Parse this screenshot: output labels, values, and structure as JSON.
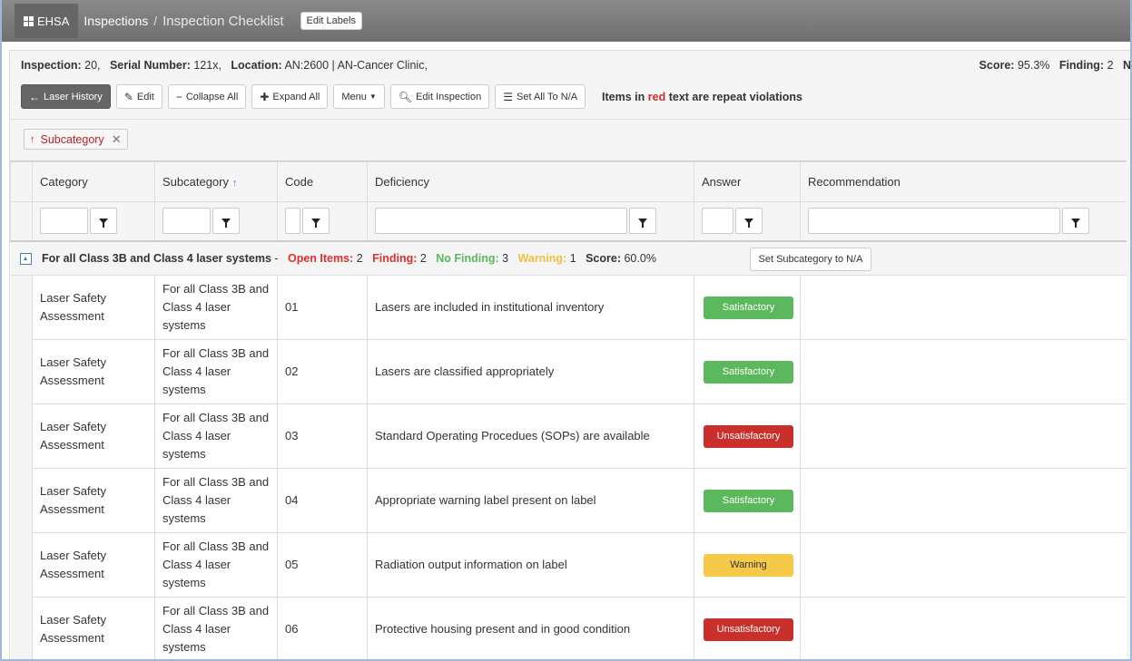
{
  "header": {
    "brand": "EHSA",
    "breadcrumb": "Inspections",
    "separator": "/",
    "current": "Inspection Checklist",
    "edit_labels": "Edit Labels"
  },
  "inspection": {
    "inspection_label": "Inspection:",
    "inspection_value": "20,",
    "serial_label": "Serial Number:",
    "serial_value": "121x,",
    "location_label": "Location:",
    "location_value": "AN:2600 | AN-Cancer Clinic,",
    "score_label": "Score:",
    "score_value": "95.3%",
    "finding_label": "Finding:",
    "finding_value": "2",
    "overflow_char": "N"
  },
  "toolbar": {
    "laser_history": "Laser History",
    "edit": "Edit",
    "collapse_all": "Collapse All",
    "expand_all": "Expand All",
    "menu": "Menu",
    "edit_inspection": "Edit Inspection",
    "set_all_na": "Set All To N/A",
    "note_prefix": "Items in",
    "note_red": "red",
    "note_suffix": "text are repeat violations"
  },
  "grouping": {
    "chip_label": "Subcategory"
  },
  "columns": {
    "category": "Category",
    "subcategory": "Subcategory",
    "code": "Code",
    "deficiency": "Deficiency",
    "answer": "Answer",
    "recommendation": "Recommendation"
  },
  "group": {
    "title": "For all Class 3B and Class 4 laser systems",
    "dash": "-",
    "open_label": "Open Items:",
    "open_value": "2",
    "finding_label": "Finding:",
    "finding_value": "2",
    "nofinding_label": "No Finding:",
    "nofinding_value": "3",
    "warning_label": "Warning:",
    "warning_value": "1",
    "score_label": "Score:",
    "score_value": "60.0%",
    "set_na": "Set Subcategory to N/A"
  },
  "rows": [
    {
      "category": "Laser Safety Assessment",
      "subcategory": "For all Class 3B and Class 4 laser systems",
      "code": "01",
      "deficiency": "Lasers are included in institutional inventory",
      "answer": "Satisfactory"
    },
    {
      "category": "Laser Safety Assessment",
      "subcategory": "For all Class 3B and Class 4 laser systems",
      "code": "02",
      "deficiency": "Lasers are classified appropriately",
      "answer": "Satisfactory"
    },
    {
      "category": "Laser Safety Assessment",
      "subcategory": "For all Class 3B and Class 4 laser systems",
      "code": "03",
      "deficiency": "Standard Operating Procedues (SOPs) are available",
      "answer": "Unsatisfactory"
    },
    {
      "category": "Laser Safety Assessment",
      "subcategory": "For all Class 3B and Class 4 laser systems",
      "code": "04",
      "deficiency": "Appropriate warning label present on label",
      "answer": "Satisfactory"
    },
    {
      "category": "Laser Safety Assessment",
      "subcategory": "For all Class 3B and Class 4 laser systems",
      "code": "05",
      "deficiency": "Radiation output information on label",
      "answer": "Warning"
    },
    {
      "category": "Laser Safety Assessment",
      "subcategory": "For all Class 3B and Class 4 laser systems",
      "code": "06",
      "deficiency": "Protective housing present and in good condition",
      "answer": "Unsatisfactory"
    }
  ],
  "answer_colors": {
    "Satisfactory": "#5cb85c",
    "Unsatisfactory": "#c9302c",
    "Warning": "#f7c948"
  },
  "answer_text_colors": {
    "Satisfactory": "#ffffff",
    "Unsatisfactory": "#ffffff",
    "Warning": "#333333"
  }
}
